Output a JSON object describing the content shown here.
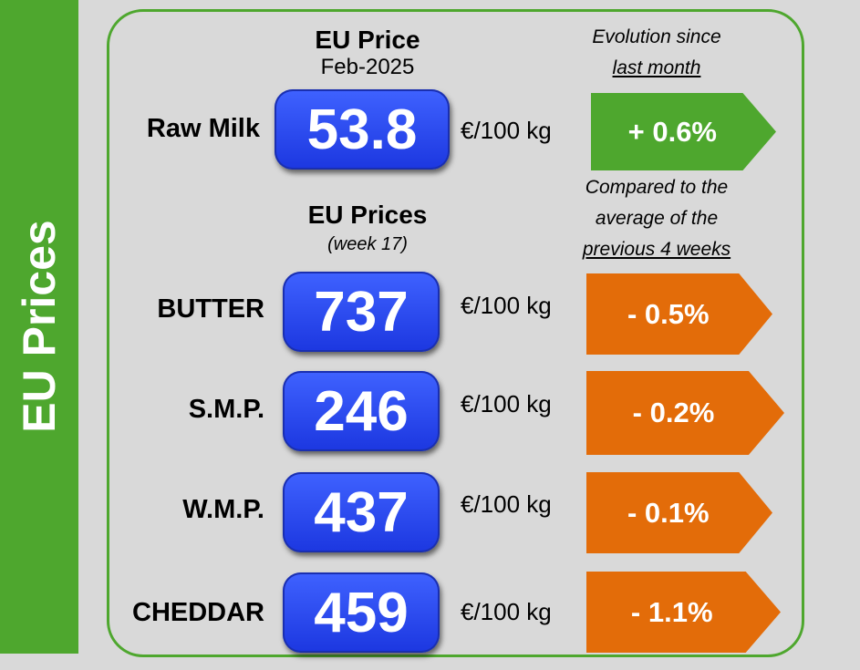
{
  "banner": {
    "title": "EU Prices"
  },
  "raw_milk": {
    "header_title": "EU Price",
    "header_period": "Feb-2025",
    "label": "Raw Milk",
    "value": "53.8",
    "unit": "€/100 kg",
    "change": "+ 0.6%",
    "note_line1": "Evolution since",
    "note_line2": "last month"
  },
  "products_header": {
    "title": "EU Prices",
    "period": "(week 17)",
    "note_line1": "Compared to the",
    "note_line2": "average of the",
    "note_line3": "previous 4 weeks"
  },
  "products": [
    {
      "label": "BUTTER",
      "value": "737",
      "unit": "€/100 kg",
      "change": "- 0.5%"
    },
    {
      "label": "S.M.P.",
      "value": "246",
      "unit": "€/100 kg",
      "change": "- 0.2%"
    },
    {
      "label": "W.M.P.",
      "value": "437",
      "unit": "€/100 kg",
      "change": "- 0.1%"
    },
    {
      "label": "CHEDDAR",
      "value": "459",
      "unit": "€/100 kg",
      "change": "- 1.1%"
    }
  ],
  "colors": {
    "green": "#4ea72e",
    "orange": "#e36c09",
    "blue": "#2a46f2"
  }
}
